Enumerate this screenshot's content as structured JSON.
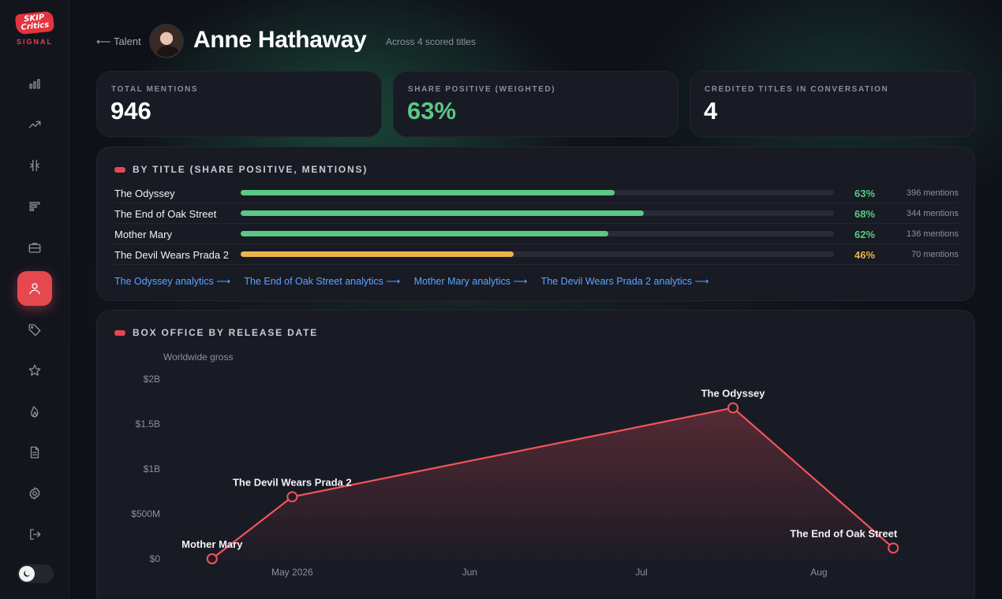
{
  "brand": {
    "logo_top": "SKIP",
    "logo_bottom": "Critics",
    "logo_sub": "SIGNAL"
  },
  "sidebar": {
    "items": [
      {
        "icon": "bar-chart-icon",
        "active": false
      },
      {
        "icon": "trend-up-icon",
        "active": false
      },
      {
        "icon": "split-icon",
        "active": false
      },
      {
        "icon": "list-bars-icon",
        "active": false
      },
      {
        "icon": "briefcase-icon",
        "active": false
      },
      {
        "icon": "user-icon",
        "active": true
      },
      {
        "icon": "tag-icon",
        "active": false
      },
      {
        "icon": "star-icon",
        "active": false
      },
      {
        "icon": "flame-icon",
        "active": false
      },
      {
        "icon": "document-icon",
        "active": false
      },
      {
        "icon": "gear-icon",
        "active": false
      },
      {
        "icon": "logout-icon",
        "active": false
      }
    ],
    "theme_toggle_icon": "moon-icon"
  },
  "header": {
    "back_label": "⟵ Talent",
    "title": "Anne Hathaway",
    "subtitle": "Across 4 scored titles"
  },
  "stats": [
    {
      "label": "TOTAL MENTIONS",
      "value": "946"
    },
    {
      "label": "SHARE POSITIVE (WEIGHTED)",
      "value": "63%"
    },
    {
      "label": "CREDITED TITLES IN CONVERSATION",
      "value": "4"
    }
  ],
  "by_title": {
    "heading": "BY TITLE (SHARE POSITIVE, MENTIONS)",
    "rows": [
      {
        "name": "The Odyssey",
        "share": 0.63,
        "pct": "63%",
        "mentions": "396 mentions",
        "color": "#59c983"
      },
      {
        "name": "The End of Oak Street",
        "share": 0.68,
        "pct": "68%",
        "mentions": "344 mentions",
        "color": "#59c983"
      },
      {
        "name": "Mother Mary",
        "share": 0.62,
        "pct": "62%",
        "mentions": "136 mentions",
        "color": "#59c983"
      },
      {
        "name": "The Devil Wears Prada 2",
        "share": 0.46,
        "pct": "46%",
        "mentions": "70 mentions",
        "color": "#eab54a"
      }
    ],
    "links": [
      "The Odyssey analytics ⟶",
      "The End of Oak Street analytics ⟶",
      "Mother Mary analytics ⟶",
      "The Devil Wears Prada 2 analytics ⟶"
    ]
  },
  "box_office": {
    "heading": "BOX OFFICE BY RELEASE DATE"
  },
  "chart_data": {
    "type": "line",
    "title": "BOX OFFICE BY RELEASE DATE",
    "ylabel": "Worldwide gross",
    "xlabel": "",
    "ylim": [
      0,
      2000000000
    ],
    "y_ticks": [
      {
        "value": 0,
        "label": "$0"
      },
      {
        "value": 500000000,
        "label": "$500M"
      },
      {
        "value": 1000000000,
        "label": "$1B"
      },
      {
        "value": 1500000000,
        "label": "$1.5B"
      },
      {
        "value": 2000000000,
        "label": "$2B"
      }
    ],
    "x_ticks": [
      {
        "date": "2026-05-01",
        "label": "May 2026"
      },
      {
        "date": "2026-06-01",
        "label": "Jun"
      },
      {
        "date": "2026-07-01",
        "label": "Jul"
      },
      {
        "date": "2026-08-01",
        "label": "Aug"
      }
    ],
    "points": [
      {
        "label": "Mother Mary",
        "date": "2026-04-17",
        "value": 0
      },
      {
        "label": "The Devil Wears Prada 2",
        "date": "2026-05-01",
        "value": 690000000
      },
      {
        "label": "The Odyssey",
        "date": "2026-07-17",
        "value": 1680000000
      },
      {
        "label": "The End of Oak Street",
        "date": "2026-08-14",
        "value": 120000000
      }
    ],
    "line_color": "#f2545b",
    "grid": true,
    "legend": "none"
  }
}
